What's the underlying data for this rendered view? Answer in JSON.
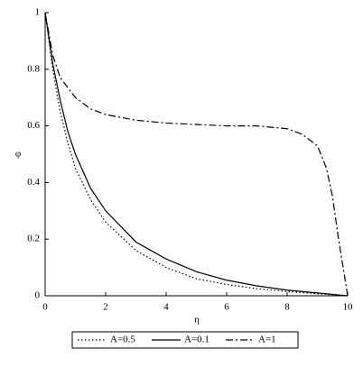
{
  "chart_data": {
    "type": "line",
    "x_label": "η",
    "y_label": "φ",
    "xlim": [
      0,
      10
    ],
    "ylim": [
      0,
      1
    ],
    "xticks": [
      0,
      2,
      4,
      6,
      8,
      10
    ],
    "yticks": [
      0,
      0.2,
      0.4,
      0.6,
      0.8,
      1
    ],
    "legend": "bottom",
    "series": [
      {
        "name": "A=0.5",
        "color": "#000000",
        "style": "dotted",
        "x": [
          0,
          0.25,
          0.5,
          0.75,
          1,
          1.5,
          2,
          3,
          4,
          5,
          6,
          7,
          8,
          9,
          10
        ],
        "values": [
          1,
          0.8,
          0.65,
          0.54,
          0.45,
          0.34,
          0.26,
          0.16,
          0.1,
          0.06,
          0.04,
          0.025,
          0.015,
          0.007,
          0
        ]
      },
      {
        "name": "A=0.1",
        "color": "#000000",
        "style": "solid",
        "x": [
          0,
          0.25,
          0.5,
          0.75,
          1,
          1.5,
          2,
          3,
          4,
          5,
          6,
          7,
          8,
          9,
          10
        ],
        "values": [
          1,
          0.82,
          0.69,
          0.58,
          0.5,
          0.38,
          0.3,
          0.19,
          0.13,
          0.085,
          0.055,
          0.035,
          0.02,
          0.01,
          0
        ]
      },
      {
        "name": "A=1",
        "color": "#000000",
        "style": "dashdot",
        "x": [
          0,
          0.25,
          0.5,
          1,
          1.5,
          2,
          3,
          4,
          5,
          6,
          7,
          8,
          8.5,
          9,
          9.3,
          9.5,
          9.7,
          9.85,
          10
        ],
        "values": [
          1,
          0.85,
          0.77,
          0.7,
          0.66,
          0.64,
          0.62,
          0.61,
          0.605,
          0.6,
          0.6,
          0.59,
          0.57,
          0.53,
          0.45,
          0.35,
          0.2,
          0.1,
          0
        ]
      }
    ]
  }
}
